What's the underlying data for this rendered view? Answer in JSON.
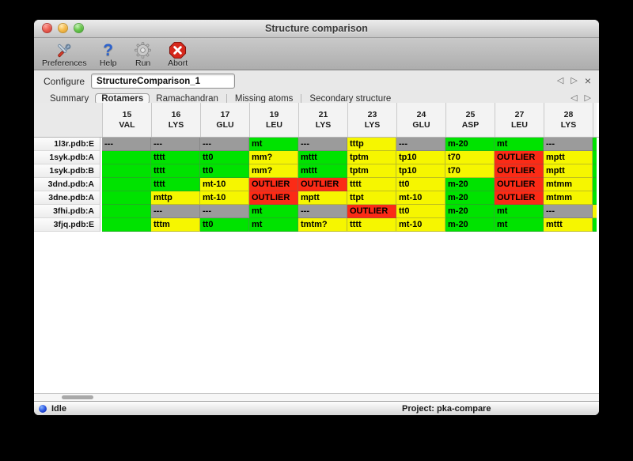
{
  "window": {
    "title": "Structure comparison"
  },
  "toolbar": {
    "buttons": [
      {
        "label": "Preferences"
      },
      {
        "label": "Help"
      },
      {
        "label": "Run"
      },
      {
        "label": "Abort"
      }
    ]
  },
  "configure": {
    "label": "Configure",
    "value": "StructureComparison_1"
  },
  "nav": {
    "prev": "◁",
    "next": "▷",
    "close": "×"
  },
  "tabs": {
    "items": [
      {
        "label": "Summary",
        "selected": false
      },
      {
        "label": "Rotamers",
        "selected": true
      },
      {
        "label": "Ramachandran",
        "selected": false
      },
      {
        "label": "Missing atoms",
        "selected": false
      },
      {
        "label": "Secondary structure",
        "selected": false
      }
    ]
  },
  "colors": {
    "green": "#00e300",
    "yellow": "#f6f600",
    "red": "#fb2b16",
    "gray": "#9b9b9b"
  },
  "table": {
    "columns": [
      {
        "num": "15",
        "res": "VAL"
      },
      {
        "num": "16",
        "res": "LYS"
      },
      {
        "num": "17",
        "res": "GLU"
      },
      {
        "num": "19",
        "res": "LEU"
      },
      {
        "num": "21",
        "res": "LYS"
      },
      {
        "num": "23",
        "res": "LYS"
      },
      {
        "num": "24",
        "res": "GLU"
      },
      {
        "num": "25",
        "res": "ASP"
      },
      {
        "num": "27",
        "res": "LEU"
      },
      {
        "num": "28",
        "res": "LYS"
      }
    ],
    "rows": [
      {
        "label": "1l3r.pdb:E",
        "sliver": "green",
        "cells": [
          {
            "text": "---",
            "color": "gray"
          },
          {
            "text": "---",
            "color": "gray"
          },
          {
            "text": "---",
            "color": "gray"
          },
          {
            "text": "mt",
            "color": "green"
          },
          {
            "text": "---",
            "color": "gray"
          },
          {
            "text": "tttp",
            "color": "yellow"
          },
          {
            "text": "---",
            "color": "gray"
          },
          {
            "text": "m-20",
            "color": "green"
          },
          {
            "text": "mt",
            "color": "green"
          },
          {
            "text": "---",
            "color": "gray"
          }
        ]
      },
      {
        "label": "1syk.pdb:A",
        "sliver": "green",
        "cells": [
          {
            "text": "",
            "color": "green"
          },
          {
            "text": "tttt",
            "color": "green"
          },
          {
            "text": "tt0",
            "color": "green"
          },
          {
            "text": "mm?",
            "color": "yellow"
          },
          {
            "text": "mttt",
            "color": "green"
          },
          {
            "text": "tptm",
            "color": "yellow"
          },
          {
            "text": "tp10",
            "color": "yellow"
          },
          {
            "text": "t70",
            "color": "yellow"
          },
          {
            "text": "OUTLIER",
            "color": "red"
          },
          {
            "text": "mptt",
            "color": "yellow"
          }
        ]
      },
      {
        "label": "1syk.pdb:B",
        "sliver": "green",
        "cells": [
          {
            "text": "",
            "color": "green"
          },
          {
            "text": "tttt",
            "color": "green"
          },
          {
            "text": "tt0",
            "color": "green"
          },
          {
            "text": "mm?",
            "color": "yellow"
          },
          {
            "text": "mttt",
            "color": "green"
          },
          {
            "text": "tptm",
            "color": "yellow"
          },
          {
            "text": "tp10",
            "color": "yellow"
          },
          {
            "text": "t70",
            "color": "yellow"
          },
          {
            "text": "OUTLIER",
            "color": "red"
          },
          {
            "text": "mptt",
            "color": "yellow"
          }
        ]
      },
      {
        "label": "3dnd.pdb:A",
        "sliver": "green",
        "cells": [
          {
            "text": "",
            "color": "green"
          },
          {
            "text": "tttt",
            "color": "green"
          },
          {
            "text": "mt-10",
            "color": "yellow"
          },
          {
            "text": "OUTLIER",
            "color": "red"
          },
          {
            "text": "OUTLIER",
            "color": "red"
          },
          {
            "text": "tttt",
            "color": "yellow"
          },
          {
            "text": "tt0",
            "color": "yellow"
          },
          {
            "text": "m-20",
            "color": "green"
          },
          {
            "text": "OUTLIER",
            "color": "red"
          },
          {
            "text": "mtmm",
            "color": "yellow"
          }
        ]
      },
      {
        "label": "3dne.pdb:A",
        "sliver": "green",
        "cells": [
          {
            "text": "",
            "color": "green"
          },
          {
            "text": "mttp",
            "color": "yellow"
          },
          {
            "text": "mt-10",
            "color": "yellow"
          },
          {
            "text": "OUTLIER",
            "color": "red"
          },
          {
            "text": "mptt",
            "color": "yellow"
          },
          {
            "text": "ttpt",
            "color": "yellow"
          },
          {
            "text": "mt-10",
            "color": "yellow"
          },
          {
            "text": "m-20",
            "color": "green"
          },
          {
            "text": "OUTLIER",
            "color": "red"
          },
          {
            "text": "mtmm",
            "color": "yellow"
          }
        ]
      },
      {
        "label": "3fhi.pdb:A",
        "sliver": "yellow",
        "cells": [
          {
            "text": "",
            "color": "green"
          },
          {
            "text": "---",
            "color": "gray"
          },
          {
            "text": "---",
            "color": "gray"
          },
          {
            "text": "mt",
            "color": "green"
          },
          {
            "text": "---",
            "color": "gray"
          },
          {
            "text": "OUTLIER",
            "color": "red"
          },
          {
            "text": "tt0",
            "color": "yellow"
          },
          {
            "text": "m-20",
            "color": "green"
          },
          {
            "text": "mt",
            "color": "green"
          },
          {
            "text": "---",
            "color": "gray"
          }
        ]
      },
      {
        "label": "3fjq.pdb:E",
        "sliver": "green",
        "cells": [
          {
            "text": "",
            "color": "green"
          },
          {
            "text": "tttm",
            "color": "yellow"
          },
          {
            "text": "tt0",
            "color": "green"
          },
          {
            "text": "mt",
            "color": "green"
          },
          {
            "text": "tmtm?",
            "color": "yellow"
          },
          {
            "text": "tttt",
            "color": "yellow"
          },
          {
            "text": "mt-10",
            "color": "yellow"
          },
          {
            "text": "m-20",
            "color": "green"
          },
          {
            "text": "mt",
            "color": "green"
          },
          {
            "text": "mttt",
            "color": "yellow"
          }
        ]
      }
    ]
  },
  "statusbar": {
    "status": "Idle",
    "project": "Project: pka-compare"
  }
}
